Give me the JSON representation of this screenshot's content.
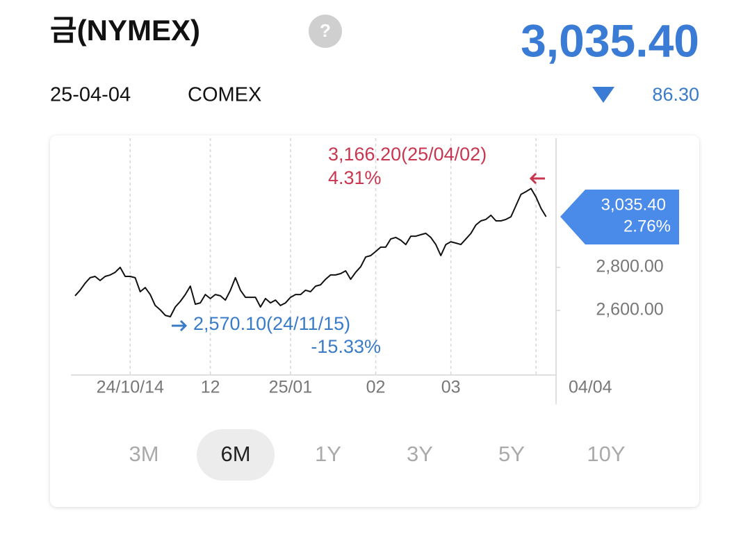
{
  "header": {
    "title": "금(NYMEX)",
    "help": "?",
    "price": "3,035.40",
    "date": "25-04-04",
    "exchange": "COMEX",
    "change": "86.30"
  },
  "chart_data": {
    "type": "line",
    "color": "#111111",
    "values": [
      2668,
      2694,
      2726,
      2752,
      2758,
      2739,
      2758,
      2765,
      2777,
      2800,
      2758,
      2758,
      2752,
      2687,
      2706,
      2674,
      2623,
      2603,
      2577,
      2571,
      2616,
      2642,
      2674,
      2713,
      2629,
      2635,
      2674,
      2655,
      2674,
      2668,
      2648,
      2694,
      2752,
      2694,
      2661,
      2661,
      2661,
      2616,
      2655,
      2635,
      2648,
      2623,
      2635,
      2661,
      2674,
      2674,
      2694,
      2687,
      2713,
      2719,
      2745,
      2765,
      2765,
      2771,
      2784,
      2745,
      2777,
      2803,
      2848,
      2855,
      2874,
      2894,
      2894,
      2932,
      2939,
      2926,
      2906,
      2945,
      2945,
      2952,
      2958,
      2939,
      2906,
      2855,
      2906,
      2919,
      2913,
      2906,
      2932,
      2958,
      2997,
      3016,
      3023,
      3042,
      3016,
      3016,
      3023,
      3035,
      3087,
      3139,
      3152,
      3166.2,
      3126,
      3074,
      3035.4
    ],
    "xlim": [
      0,
      96
    ],
    "xticks": [
      {
        "value": 11,
        "label": "24/10/14"
      },
      {
        "value": 27,
        "label": "12"
      },
      {
        "value": 43,
        "label": "25/01"
      },
      {
        "value": 60,
        "label": "02"
      },
      {
        "value": 75,
        "label": "03"
      },
      {
        "value": 92,
        "label": null
      },
      {
        "value": 96,
        "label": "04/04"
      }
    ],
    "ylim": [
      2300,
      3400
    ],
    "yticks": [
      {
        "value": 2600,
        "label": "2,600.00"
      },
      {
        "value": 2800,
        "label": "2,800.00"
      }
    ],
    "annotations": {
      "high": {
        "text": "3,166.20(25/04/02)",
        "pct": "4.31%",
        "color": "#c8374f"
      },
      "low": {
        "text": "2,570.10(24/11/15)",
        "pct": "-15.33%",
        "color": "#3a7bc8"
      },
      "last": {
        "value": 3035.4,
        "text": "3,035.40",
        "pct": "2.76%",
        "color": "#4a8ae8"
      }
    }
  },
  "periods": {
    "items": [
      "3M",
      "6M",
      "1Y",
      "3Y",
      "5Y",
      "10Y"
    ],
    "selected": "6M"
  }
}
